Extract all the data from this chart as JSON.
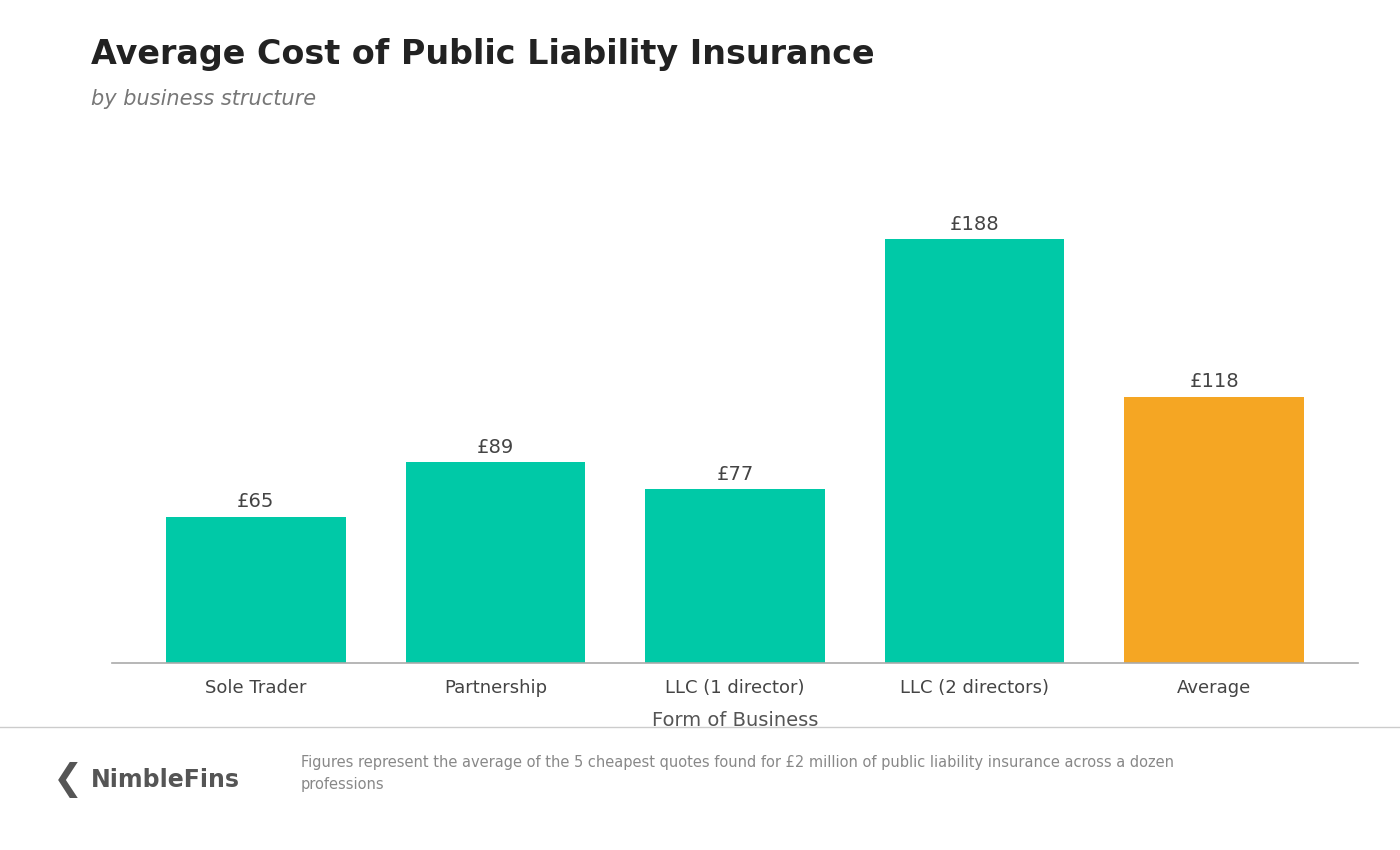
{
  "title": "Average Cost of Public Liability Insurance",
  "subtitle": "by business structure",
  "categories": [
    "Sole Trader",
    "Partnership",
    "LLC (1 director)",
    "LLC (2 directors)",
    "Average"
  ],
  "values": [
    65,
    89,
    77,
    188,
    118
  ],
  "bar_colors": [
    "#00C9A7",
    "#00C9A7",
    "#00C9A7",
    "#00C9A7",
    "#F5A623"
  ],
  "xlabel": "Form of Business",
  "ylim": [
    0,
    215
  ],
  "value_labels": [
    "£65",
    "£89",
    "£77",
    "£188",
    "£118"
  ],
  "title_fontsize": 24,
  "subtitle_fontsize": 15,
  "label_fontsize": 14,
  "tick_fontsize": 13,
  "value_fontsize": 14,
  "background_color": "#ffffff",
  "footer_text": "Figures represent the average of the 5 cheapest quotes found for £2 million of public liability insurance across a dozen\nprofessions",
  "nimblefins_text": "NimbleFins",
  "bar_width": 0.75
}
